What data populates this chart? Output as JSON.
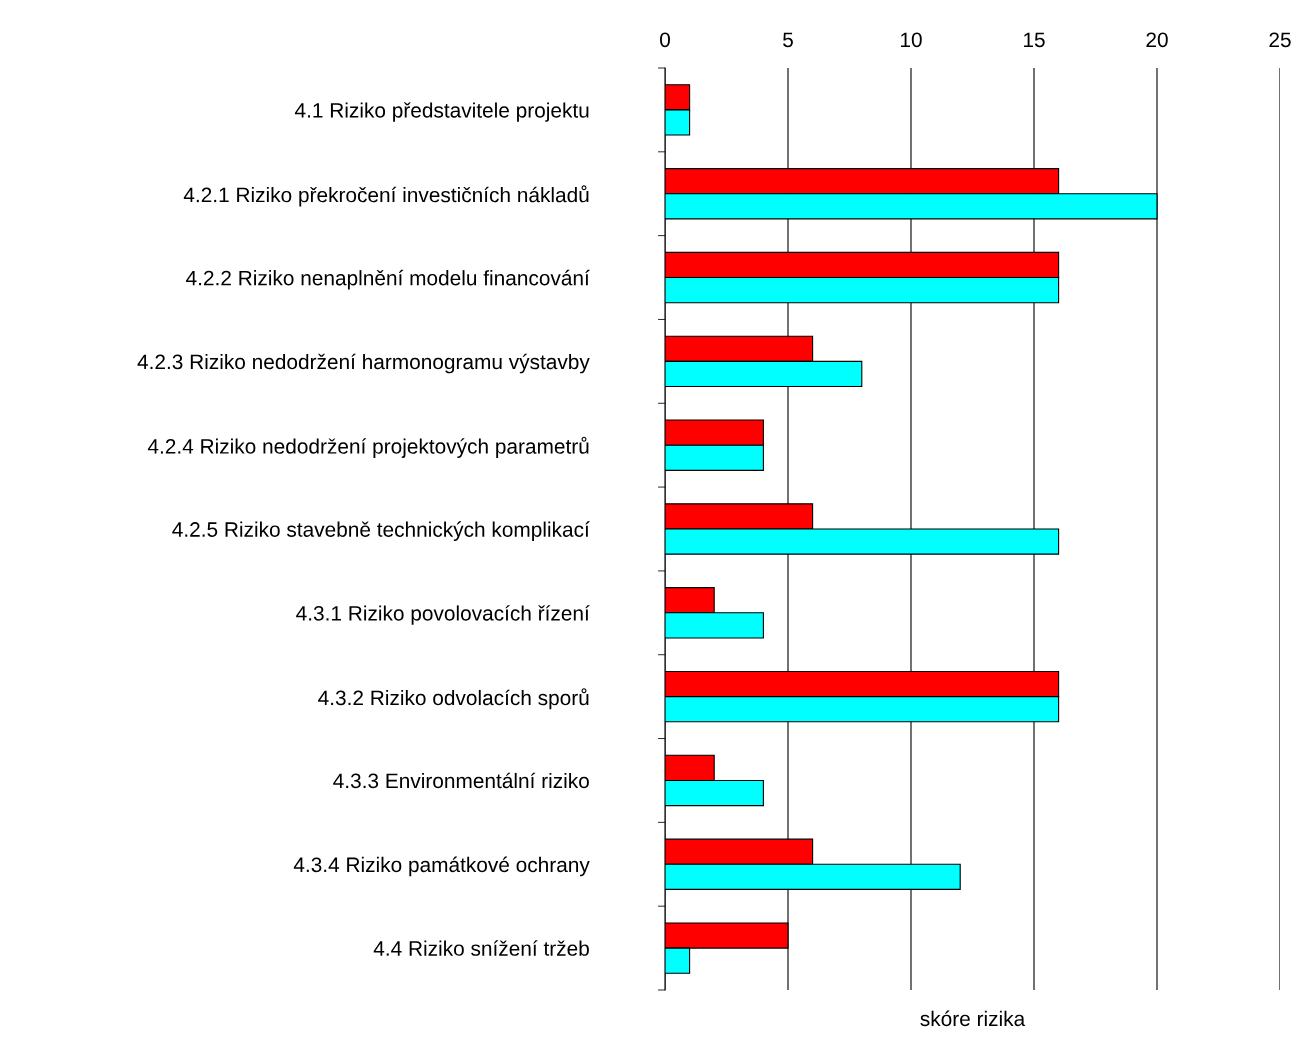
{
  "chart_data": {
    "type": "bar",
    "orientation": "horizontal",
    "xlabel": "skóre rizika",
    "categories": [
      "4.1 Riziko představitele projektu ",
      "4.2.1 Riziko překročení investičních nákladů ",
      "4.2.2 Riziko nenaplnění modelu financování ",
      "4.2.3 Riziko nedodržení harmonogramu výstavby ",
      "4.2.4 Riziko nedodržení projektových parametrů ",
      "4.2.5 Riziko stavebně technických komplikací ",
      "4.3.1 Riziko povolovacích řízení ",
      "4.3.2 Riziko odvolacích sporů ",
      "4.3.3 Environmentální riziko ",
      "4.3.4 Riziko památkové ochrany ",
      "4.4 Riziko snížení tržeb "
    ],
    "series": [
      {
        "color": "#ff0000",
        "values": [
          1,
          16,
          16,
          6,
          4,
          6,
          2,
          16,
          2,
          6,
          5
        ]
      },
      {
        "color": "#00ffff",
        "values": [
          1,
          20,
          16,
          8,
          4,
          16,
          4,
          16,
          4,
          12,
          1
        ]
      }
    ],
    "xlim": [
      0,
      25
    ],
    "xticks": [
      0,
      5,
      10,
      15,
      20,
      25
    ],
    "grid": "x",
    "legend": false
  }
}
